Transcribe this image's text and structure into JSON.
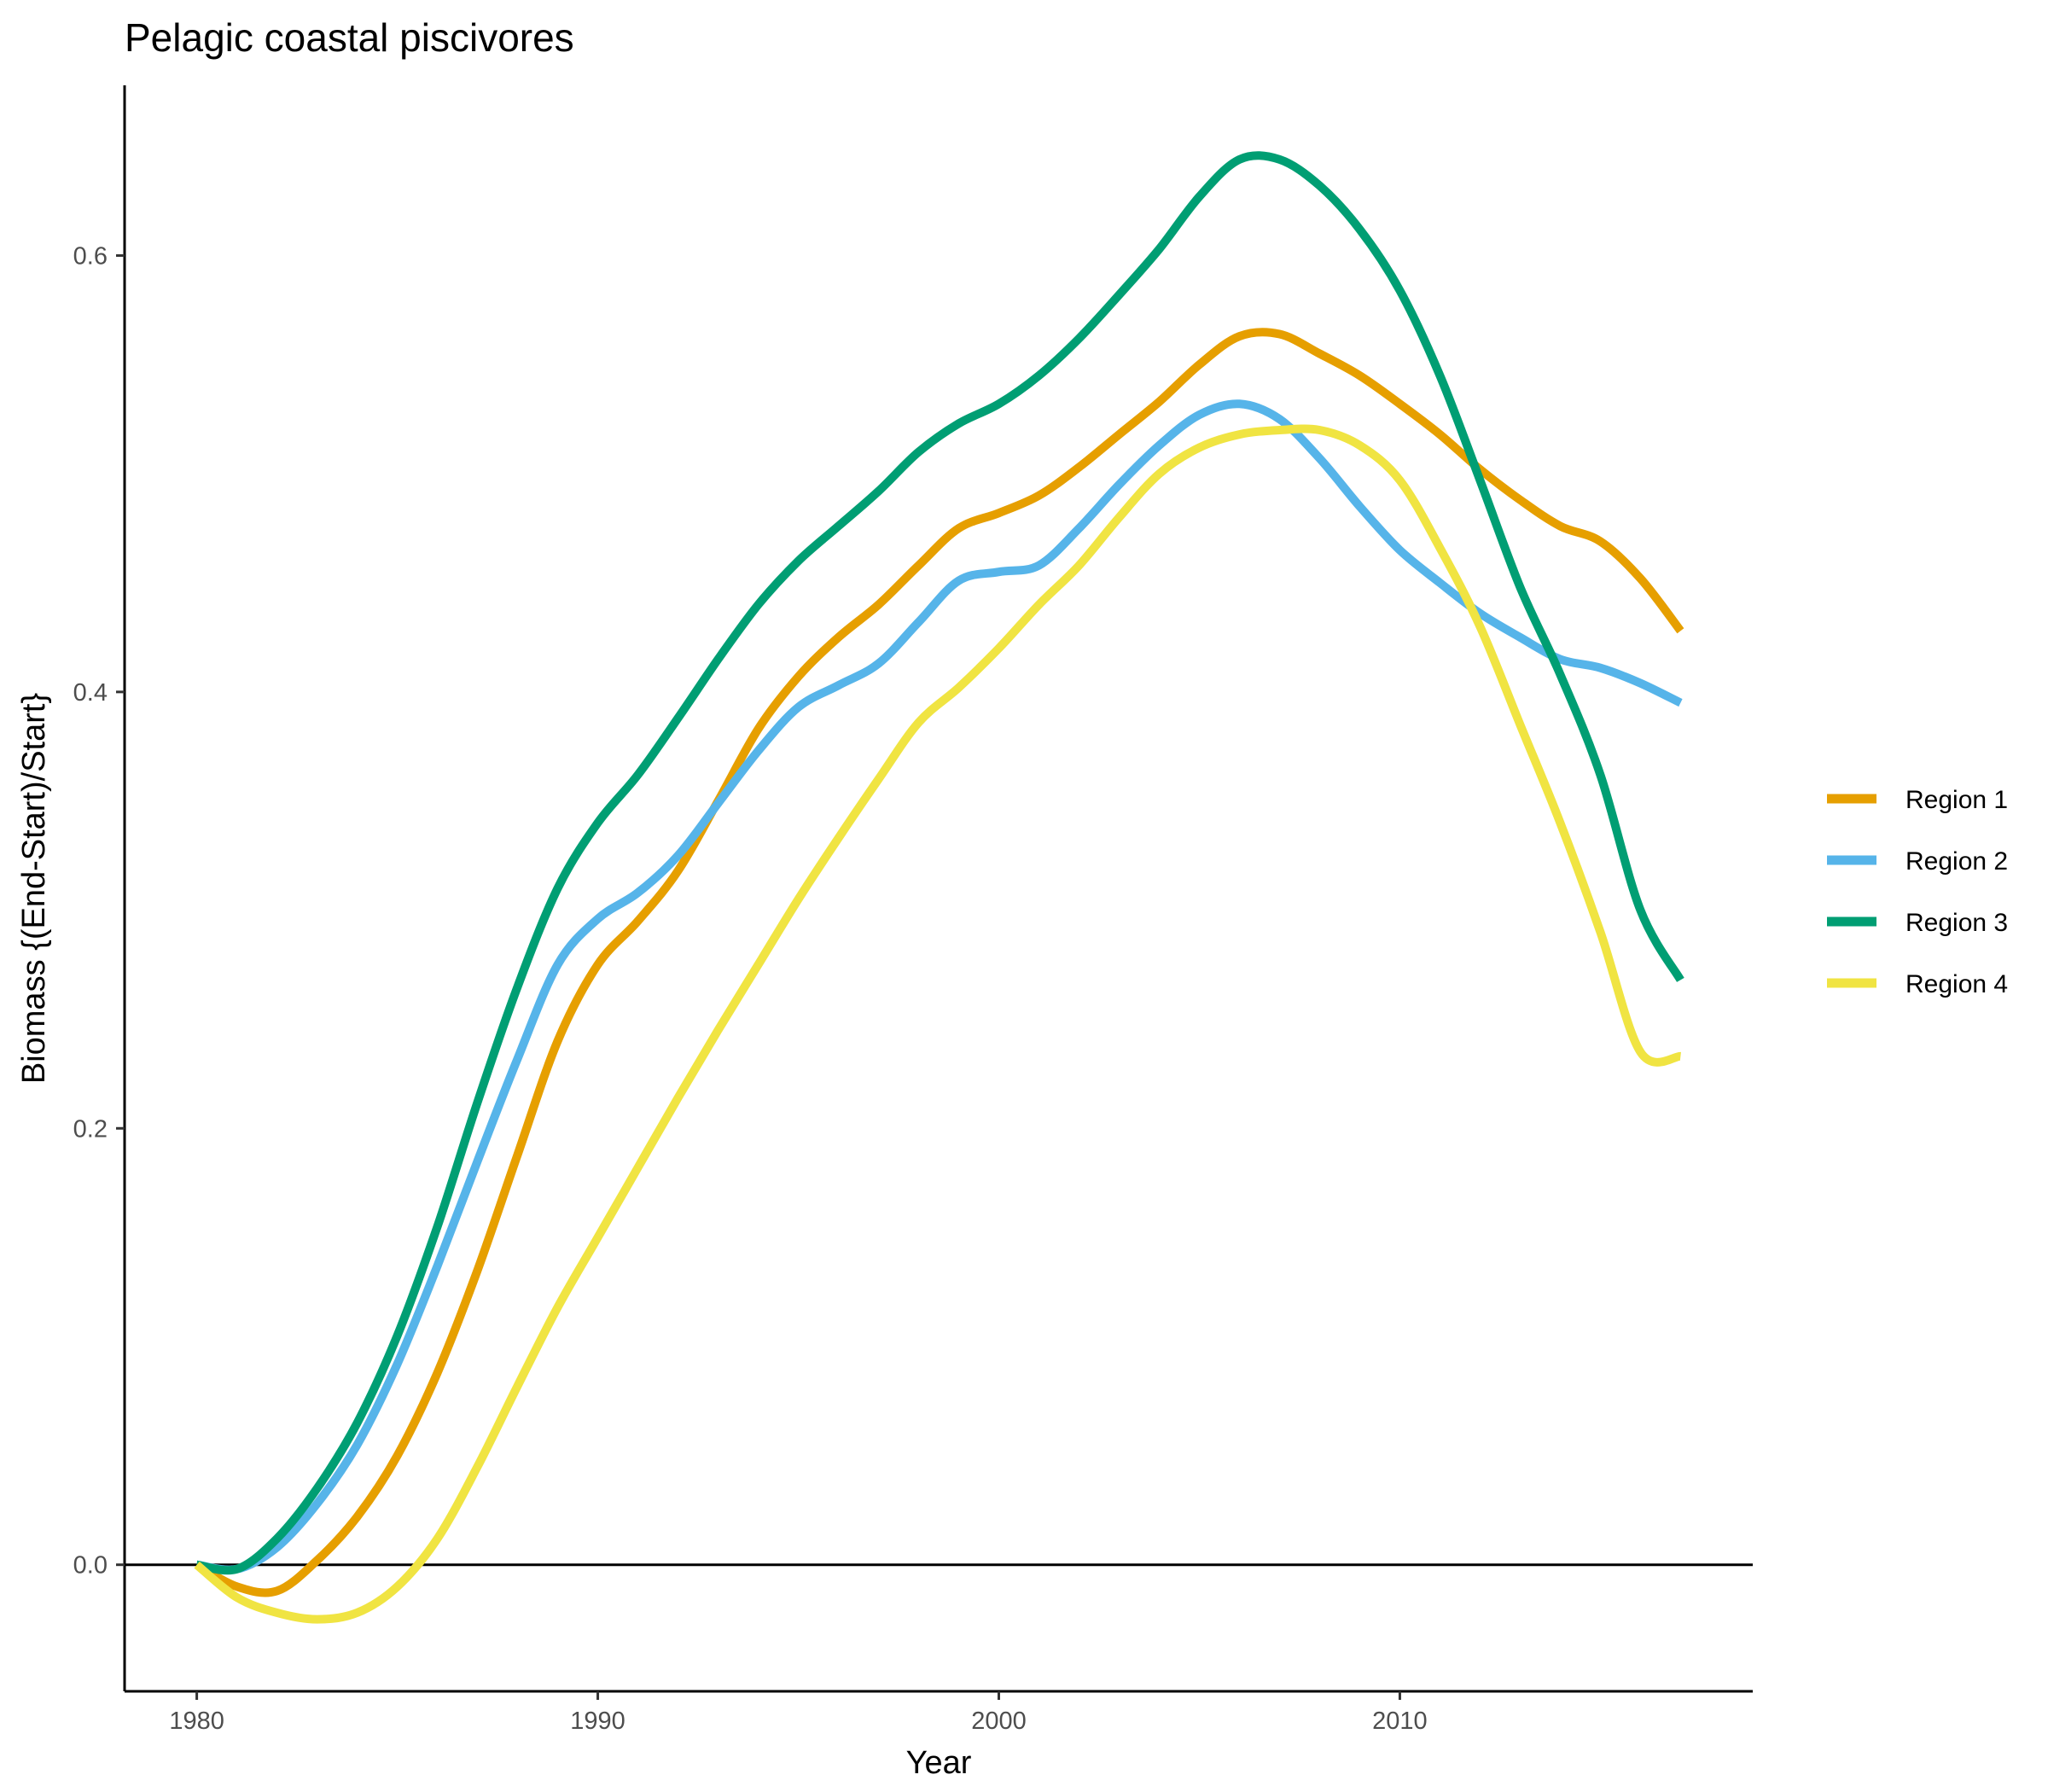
{
  "chart_data": {
    "type": "line",
    "title": "Pelagic coastal piscivores",
    "xlabel": "Year",
    "ylabel": "Biomass {(End-Start)/Start}",
    "xlim": [
      1978.2,
      2018.8
    ],
    "ylim": [
      -0.058,
      0.678
    ],
    "x_ticks": [
      1980,
      1990,
      2000,
      2010
    ],
    "x_tick_labels": [
      "1980",
      "1990",
      "2000",
      "2010"
    ],
    "y_ticks": [
      0.0,
      0.2,
      0.4,
      0.6
    ],
    "y_tick_labels": [
      "0.0",
      "0.2",
      "0.4",
      "0.6"
    ],
    "zero_line": 0.0,
    "grid": false,
    "legend_position": "right",
    "series": [
      {
        "name": "Region 1",
        "color": "#E69F00",
        "x": [
          1980,
          1981,
          1982,
          1983,
          1984,
          1985,
          1986,
          1987,
          1988,
          1989,
          1990,
          1991,
          1992,
          1993,
          1994,
          1995,
          1996,
          1997,
          1998,
          1999,
          2000,
          2001,
          2002,
          2003,
          2004,
          2005,
          2006,
          2007,
          2008,
          2009,
          2010,
          2011,
          2012,
          2013,
          2014,
          2015,
          2016,
          2017
        ],
        "y": [
          0.0,
          -0.01,
          -0.012,
          0.002,
          0.022,
          0.05,
          0.088,
          0.135,
          0.188,
          0.24,
          0.275,
          0.295,
          0.318,
          0.35,
          0.383,
          0.407,
          0.425,
          0.44,
          0.458,
          0.475,
          0.482,
          0.49,
          0.503,
          0.518,
          0.533,
          0.55,
          0.563,
          0.564,
          0.555,
          0.545,
          0.532,
          0.518,
          0.502,
          0.488,
          0.476,
          0.469,
          0.452,
          0.428
        ]
      },
      {
        "name": "Region 2",
        "color": "#56B4E9",
        "x": [
          1980,
          1981,
          1982,
          1983,
          1984,
          1985,
          1986,
          1987,
          1988,
          1989,
          1990,
          1991,
          1992,
          1993,
          1994,
          1995,
          1996,
          1997,
          1998,
          1999,
          2000,
          2001,
          2002,
          2003,
          2004,
          2005,
          2006,
          2007,
          2008,
          2009,
          2010,
          2011,
          2012,
          2013,
          2014,
          2015,
          2016,
          2017
        ],
        "y": [
          0.0,
          -0.002,
          0.008,
          0.028,
          0.055,
          0.092,
          0.137,
          0.185,
          0.232,
          0.275,
          0.296,
          0.308,
          0.325,
          0.349,
          0.373,
          0.393,
          0.403,
          0.413,
          0.432,
          0.451,
          0.455,
          0.458,
          0.475,
          0.495,
          0.513,
          0.527,
          0.532,
          0.525,
          0.507,
          0.485,
          0.465,
          0.45,
          0.436,
          0.425,
          0.415,
          0.411,
          0.404,
          0.395
        ]
      },
      {
        "name": "Region 3",
        "color": "#009E73",
        "x": [
          1980,
          1981,
          1982,
          1983,
          1984,
          1985,
          1986,
          1987,
          1988,
          1989,
          1990,
          1991,
          1992,
          1993,
          1994,
          1995,
          1996,
          1997,
          1998,
          1999,
          2000,
          2001,
          2002,
          2003,
          2004,
          2005,
          2006,
          2007,
          2008,
          2009,
          2010,
          2011,
          2012,
          2013,
          2014,
          2015,
          2016,
          2017
        ],
        "y": [
          0.0,
          -0.002,
          0.012,
          0.035,
          0.065,
          0.105,
          0.155,
          0.212,
          0.265,
          0.31,
          0.34,
          0.362,
          0.388,
          0.415,
          0.44,
          0.46,
          0.476,
          0.492,
          0.51,
          0.523,
          0.532,
          0.545,
          0.562,
          0.582,
          0.603,
          0.627,
          0.644,
          0.644,
          0.632,
          0.612,
          0.584,
          0.545,
          0.497,
          0.448,
          0.408,
          0.362,
          0.3,
          0.268
        ]
      },
      {
        "name": "Region 4",
        "color": "#F0E442",
        "x": [
          1980,
          1981,
          1982,
          1983,
          1984,
          1985,
          1986,
          1987,
          1988,
          1989,
          1990,
          1991,
          1992,
          1993,
          1994,
          1995,
          1996,
          1997,
          1998,
          1999,
          2000,
          2001,
          2002,
          2003,
          2004,
          2005,
          2006,
          2007,
          2008,
          2009,
          2010,
          2011,
          2012,
          2013,
          2014,
          2015,
          2016,
          2017
        ],
        "y": [
          0.0,
          -0.015,
          -0.022,
          -0.025,
          -0.022,
          -0.01,
          0.012,
          0.045,
          0.082,
          0.118,
          0.15,
          0.182,
          0.214,
          0.245,
          0.275,
          0.305,
          0.333,
          0.36,
          0.386,
          0.402,
          0.42,
          0.44,
          0.458,
          0.48,
          0.5,
          0.512,
          0.518,
          0.52,
          0.52,
          0.513,
          0.497,
          0.466,
          0.43,
          0.385,
          0.34,
          0.29,
          0.235,
          0.233
        ]
      }
    ]
  }
}
